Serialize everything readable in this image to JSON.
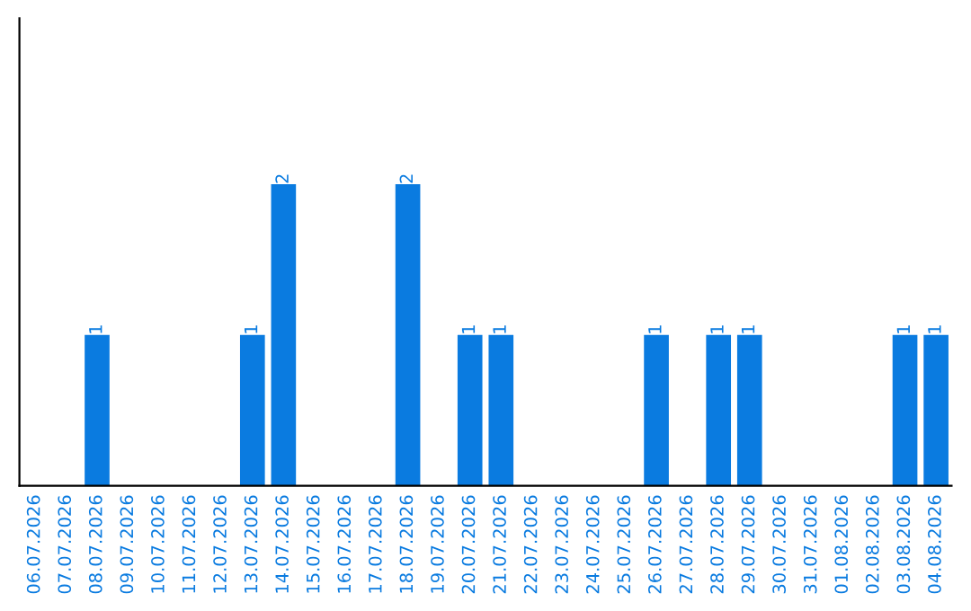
{
  "chart_data": {
    "type": "bar",
    "categories": [
      "06.07.2026",
      "07.07.2026",
      "08.07.2026",
      "09.07.2026",
      "10.07.2026",
      "11.07.2026",
      "12.07.2026",
      "13.07.2026",
      "14.07.2026",
      "15.07.2026",
      "16.07.2026",
      "17.07.2026",
      "18.07.2026",
      "19.07.2026",
      "20.07.2026",
      "21.07.2026",
      "22.07.2026",
      "23.07.2026",
      "24.07.2026",
      "25.07.2026",
      "26.07.2026",
      "27.07.2026",
      "28.07.2026",
      "29.07.2026",
      "30.07.2026",
      "31.07.2026",
      "01.08.2026",
      "02.08.2026",
      "03.08.2026",
      "04.08.2026"
    ],
    "values": [
      0,
      0,
      1,
      0,
      0,
      0,
      0,
      1,
      2,
      0,
      0,
      0,
      2,
      0,
      1,
      1,
      0,
      0,
      0,
      0,
      1,
      0,
      1,
      1,
      0,
      0,
      0,
      0,
      1,
      1
    ],
    "value_labels": [
      null,
      null,
      "1",
      null,
      null,
      null,
      null,
      "1",
      "2",
      null,
      null,
      null,
      "2",
      null,
      "1",
      "1",
      null,
      null,
      null,
      null,
      "1",
      null,
      "1",
      "1",
      null,
      null,
      null,
      null,
      "1",
      "1"
    ],
    "color": "#0a7be0",
    "tick_labels": "x",
    "grid": false
  }
}
